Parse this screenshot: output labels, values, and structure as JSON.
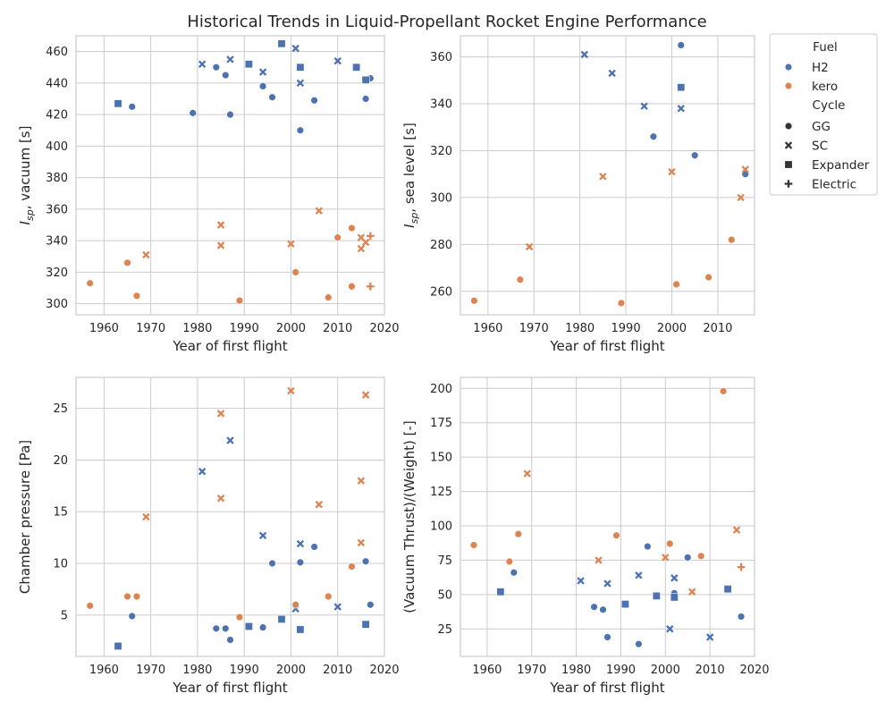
{
  "figure": {
    "title": "Historical Trends in Liquid-Propellant Rocket Engine Performance"
  },
  "legend": {
    "fuel_title": "Fuel",
    "fuel_items": [
      {
        "label": "H2",
        "color": "#4c72b0"
      },
      {
        "label": "kero",
        "color": "#dd8452"
      }
    ],
    "cycle_title": "Cycle",
    "cycle_items": [
      {
        "label": "GG",
        "marker": "circle"
      },
      {
        "label": "SC",
        "marker": "x"
      },
      {
        "label": "Expander",
        "marker": "square"
      },
      {
        "label": "Electric",
        "marker": "plus"
      }
    ]
  },
  "chart_data": [
    {
      "type": "scatter",
      "xlabel": "Year of first flight",
      "ylabel": "I_sp, vacuum [s]",
      "ylabel_main": "I",
      "ylabel_sub": "sp",
      "ylabel_rest": ", vacuum [s]",
      "xlim": [
        1954,
        2020
      ],
      "ylim": [
        293,
        470
      ],
      "xticks": [
        "1960",
        "1970",
        "1980",
        "1990",
        "2000",
        "2010",
        "2020"
      ],
      "yticks": [
        "300",
        "320",
        "340",
        "360",
        "380",
        "400",
        "420",
        "440",
        "460"
      ],
      "grid": true,
      "points": [
        {
          "x": 1966,
          "y": 425,
          "fuel": "H2",
          "cycle": "GG"
        },
        {
          "x": 1979,
          "y": 421,
          "fuel": "H2",
          "cycle": "GG"
        },
        {
          "x": 1984,
          "y": 450,
          "fuel": "H2",
          "cycle": "GG"
        },
        {
          "x": 1986,
          "y": 445,
          "fuel": "H2",
          "cycle": "GG"
        },
        {
          "x": 1987,
          "y": 420,
          "fuel": "H2",
          "cycle": "GG"
        },
        {
          "x": 1994,
          "y": 438,
          "fuel": "H2",
          "cycle": "GG"
        },
        {
          "x": 1996,
          "y": 431,
          "fuel": "H2",
          "cycle": "GG"
        },
        {
          "x": 2002,
          "y": 410,
          "fuel": "H2",
          "cycle": "GG"
        },
        {
          "x": 2005,
          "y": 429,
          "fuel": "H2",
          "cycle": "GG"
        },
        {
          "x": 2016,
          "y": 430,
          "fuel": "H2",
          "cycle": "GG"
        },
        {
          "x": 2017,
          "y": 443,
          "fuel": "H2",
          "cycle": "GG"
        },
        {
          "x": 1981,
          "y": 452,
          "fuel": "H2",
          "cycle": "SC"
        },
        {
          "x": 1987,
          "y": 455,
          "fuel": "H2",
          "cycle": "SC"
        },
        {
          "x": 1994,
          "y": 447,
          "fuel": "H2",
          "cycle": "SC"
        },
        {
          "x": 2001,
          "y": 462,
          "fuel": "H2",
          "cycle": "SC"
        },
        {
          "x": 2002,
          "y": 440,
          "fuel": "H2",
          "cycle": "SC"
        },
        {
          "x": 2010,
          "y": 454,
          "fuel": "H2",
          "cycle": "SC"
        },
        {
          "x": 1963,
          "y": 427,
          "fuel": "H2",
          "cycle": "Expander"
        },
        {
          "x": 1991,
          "y": 452,
          "fuel": "H2",
          "cycle": "Expander"
        },
        {
          "x": 1998,
          "y": 465,
          "fuel": "H2",
          "cycle": "Expander"
        },
        {
          "x": 2002,
          "y": 450,
          "fuel": "H2",
          "cycle": "Expander"
        },
        {
          "x": 2014,
          "y": 450,
          "fuel": "H2",
          "cycle": "Expander"
        },
        {
          "x": 2016,
          "y": 442,
          "fuel": "H2",
          "cycle": "Expander"
        },
        {
          "x": 1957,
          "y": 313,
          "fuel": "kero",
          "cycle": "GG"
        },
        {
          "x": 1965,
          "y": 326,
          "fuel": "kero",
          "cycle": "GG"
        },
        {
          "x": 1967,
          "y": 305,
          "fuel": "kero",
          "cycle": "GG"
        },
        {
          "x": 1989,
          "y": 302,
          "fuel": "kero",
          "cycle": "GG"
        },
        {
          "x": 2001,
          "y": 320,
          "fuel": "kero",
          "cycle": "GG"
        },
        {
          "x": 2008,
          "y": 304,
          "fuel": "kero",
          "cycle": "GG"
        },
        {
          "x": 2010,
          "y": 342,
          "fuel": "kero",
          "cycle": "GG"
        },
        {
          "x": 2013,
          "y": 348,
          "fuel": "kero",
          "cycle": "GG"
        },
        {
          "x": 2013,
          "y": 311,
          "fuel": "kero",
          "cycle": "GG"
        },
        {
          "x": 1969,
          "y": 331,
          "fuel": "kero",
          "cycle": "SC"
        },
        {
          "x": 1985,
          "y": 350,
          "fuel": "kero",
          "cycle": "SC"
        },
        {
          "x": 1985,
          "y": 337,
          "fuel": "kero",
          "cycle": "SC"
        },
        {
          "x": 2000,
          "y": 338,
          "fuel": "kero",
          "cycle": "SC"
        },
        {
          "x": 2006,
          "y": 359,
          "fuel": "kero",
          "cycle": "SC"
        },
        {
          "x": 2015,
          "y": 342,
          "fuel": "kero",
          "cycle": "SC"
        },
        {
          "x": 2015,
          "y": 335,
          "fuel": "kero",
          "cycle": "SC"
        },
        {
          "x": 2016,
          "y": 339,
          "fuel": "kero",
          "cycle": "SC"
        },
        {
          "x": 2017,
          "y": 343,
          "fuel": "kero",
          "cycle": "Electric"
        },
        {
          "x": 2017,
          "y": 311,
          "fuel": "kero",
          "cycle": "Electric"
        }
      ]
    },
    {
      "type": "scatter",
      "xlabel": "Year of first flight",
      "ylabel": "I_sp, sea level [s]",
      "ylabel_main": "I",
      "ylabel_sub": "sp",
      "ylabel_rest": ", sea level [s]",
      "xlim": [
        1954,
        2018
      ],
      "ylim": [
        250,
        369
      ],
      "xticks": [
        "1960",
        "1970",
        "1980",
        "1990",
        "2000",
        "2010"
      ],
      "yticks": [
        "260",
        "280",
        "300",
        "320",
        "340",
        "360"
      ],
      "grid": true,
      "points": [
        {
          "x": 1996,
          "y": 326,
          "fuel": "H2",
          "cycle": "GG"
        },
        {
          "x": 2002,
          "y": 365,
          "fuel": "H2",
          "cycle": "GG"
        },
        {
          "x": 2005,
          "y": 318,
          "fuel": "H2",
          "cycle": "GG"
        },
        {
          "x": 2016,
          "y": 310,
          "fuel": "H2",
          "cycle": "GG"
        },
        {
          "x": 1981,
          "y": 361,
          "fuel": "H2",
          "cycle": "SC"
        },
        {
          "x": 1987,
          "y": 353,
          "fuel": "H2",
          "cycle": "SC"
        },
        {
          "x": 1994,
          "y": 339,
          "fuel": "H2",
          "cycle": "SC"
        },
        {
          "x": 2002,
          "y": 338,
          "fuel": "H2",
          "cycle": "SC"
        },
        {
          "x": 2002,
          "y": 347,
          "fuel": "H2",
          "cycle": "Expander"
        },
        {
          "x": 1957,
          "y": 256,
          "fuel": "kero",
          "cycle": "GG"
        },
        {
          "x": 1967,
          "y": 265,
          "fuel": "kero",
          "cycle": "GG"
        },
        {
          "x": 1989,
          "y": 255,
          "fuel": "kero",
          "cycle": "GG"
        },
        {
          "x": 2001,
          "y": 263,
          "fuel": "kero",
          "cycle": "GG"
        },
        {
          "x": 2008,
          "y": 266,
          "fuel": "kero",
          "cycle": "GG"
        },
        {
          "x": 2013,
          "y": 282,
          "fuel": "kero",
          "cycle": "GG"
        },
        {
          "x": 1969,
          "y": 279,
          "fuel": "kero",
          "cycle": "SC"
        },
        {
          "x": 1985,
          "y": 309,
          "fuel": "kero",
          "cycle": "SC"
        },
        {
          "x": 2000,
          "y": 311,
          "fuel": "kero",
          "cycle": "SC"
        },
        {
          "x": 2015,
          "y": 300,
          "fuel": "kero",
          "cycle": "SC"
        },
        {
          "x": 2016,
          "y": 312,
          "fuel": "kero",
          "cycle": "SC"
        }
      ]
    },
    {
      "type": "scatter",
      "xlabel": "Year of first flight",
      "ylabel": "Chamber pressure [Pa]",
      "xlim": [
        1954,
        2020
      ],
      "ylim": [
        1.0,
        28.0
      ],
      "xticks": [
        "1960",
        "1970",
        "1980",
        "1990",
        "2000",
        "2010",
        "2020"
      ],
      "yticks": [
        "5",
        "10",
        "15",
        "20",
        "25"
      ],
      "grid": true,
      "points": [
        {
          "x": 1966,
          "y": 4.9,
          "fuel": "H2",
          "cycle": "GG"
        },
        {
          "x": 1984,
          "y": 3.7,
          "fuel": "H2",
          "cycle": "GG"
        },
        {
          "x": 1986,
          "y": 3.7,
          "fuel": "H2",
          "cycle": "GG"
        },
        {
          "x": 1987,
          "y": 2.6,
          "fuel": "H2",
          "cycle": "GG"
        },
        {
          "x": 1994,
          "y": 3.8,
          "fuel": "H2",
          "cycle": "GG"
        },
        {
          "x": 1996,
          "y": 10.0,
          "fuel": "H2",
          "cycle": "GG"
        },
        {
          "x": 2002,
          "y": 10.1,
          "fuel": "H2",
          "cycle": "GG"
        },
        {
          "x": 2005,
          "y": 11.6,
          "fuel": "H2",
          "cycle": "GG"
        },
        {
          "x": 2016,
          "y": 10.2,
          "fuel": "H2",
          "cycle": "GG"
        },
        {
          "x": 2017,
          "y": 6.0,
          "fuel": "H2",
          "cycle": "GG"
        },
        {
          "x": 1981,
          "y": 18.9,
          "fuel": "H2",
          "cycle": "SC"
        },
        {
          "x": 1987,
          "y": 21.9,
          "fuel": "H2",
          "cycle": "SC"
        },
        {
          "x": 1994,
          "y": 12.7,
          "fuel": "H2",
          "cycle": "SC"
        },
        {
          "x": 2001,
          "y": 5.6,
          "fuel": "H2",
          "cycle": "SC"
        },
        {
          "x": 2002,
          "y": 11.9,
          "fuel": "H2",
          "cycle": "SC"
        },
        {
          "x": 2010,
          "y": 5.8,
          "fuel": "H2",
          "cycle": "SC"
        },
        {
          "x": 1963,
          "y": 2.0,
          "fuel": "H2",
          "cycle": "Expander"
        },
        {
          "x": 1991,
          "y": 3.9,
          "fuel": "H2",
          "cycle": "Expander"
        },
        {
          "x": 1998,
          "y": 4.6,
          "fuel": "H2",
          "cycle": "Expander"
        },
        {
          "x": 2002,
          "y": 3.6,
          "fuel": "H2",
          "cycle": "Expander"
        },
        {
          "x": 2016,
          "y": 4.1,
          "fuel": "H2",
          "cycle": "Expander"
        },
        {
          "x": 1957,
          "y": 5.9,
          "fuel": "kero",
          "cycle": "GG"
        },
        {
          "x": 1965,
          "y": 6.8,
          "fuel": "kero",
          "cycle": "GG"
        },
        {
          "x": 1967,
          "y": 6.8,
          "fuel": "kero",
          "cycle": "GG"
        },
        {
          "x": 1989,
          "y": 4.8,
          "fuel": "kero",
          "cycle": "GG"
        },
        {
          "x": 2001,
          "y": 6.0,
          "fuel": "kero",
          "cycle": "GG"
        },
        {
          "x": 2008,
          "y": 6.8,
          "fuel": "kero",
          "cycle": "GG"
        },
        {
          "x": 2013,
          "y": 9.7,
          "fuel": "kero",
          "cycle": "GG"
        },
        {
          "x": 1969,
          "y": 14.5,
          "fuel": "kero",
          "cycle": "SC"
        },
        {
          "x": 1985,
          "y": 24.5,
          "fuel": "kero",
          "cycle": "SC"
        },
        {
          "x": 1985,
          "y": 16.3,
          "fuel": "kero",
          "cycle": "SC"
        },
        {
          "x": 2000,
          "y": 26.7,
          "fuel": "kero",
          "cycle": "SC"
        },
        {
          "x": 2006,
          "y": 15.7,
          "fuel": "kero",
          "cycle": "SC"
        },
        {
          "x": 2015,
          "y": 18.0,
          "fuel": "kero",
          "cycle": "SC"
        },
        {
          "x": 2015,
          "y": 12.0,
          "fuel": "kero",
          "cycle": "SC"
        },
        {
          "x": 2016,
          "y": 26.3,
          "fuel": "kero",
          "cycle": "SC"
        }
      ]
    },
    {
      "type": "scatter",
      "xlabel": "Year of first flight",
      "ylabel": "(Vacuum Thrust)/(Weight) [-]",
      "xlim": [
        1954,
        2020
      ],
      "ylim": [
        5,
        208
      ],
      "xticks": [
        "1960",
        "1970",
        "1980",
        "1990",
        "2000",
        "2010",
        "2020"
      ],
      "yticks": [
        "25",
        "50",
        "75",
        "100",
        "125",
        "150",
        "175",
        "200"
      ],
      "grid": true,
      "points": [
        {
          "x": 1966,
          "y": 66,
          "fuel": "H2",
          "cycle": "GG"
        },
        {
          "x": 1984,
          "y": 41,
          "fuel": "H2",
          "cycle": "GG"
        },
        {
          "x": 1986,
          "y": 39,
          "fuel": "H2",
          "cycle": "GG"
        },
        {
          "x": 1987,
          "y": 19,
          "fuel": "H2",
          "cycle": "GG"
        },
        {
          "x": 1994,
          "y": 14,
          "fuel": "H2",
          "cycle": "GG"
        },
        {
          "x": 1996,
          "y": 85,
          "fuel": "H2",
          "cycle": "GG"
        },
        {
          "x": 2002,
          "y": 51,
          "fuel": "H2",
          "cycle": "GG"
        },
        {
          "x": 2005,
          "y": 77,
          "fuel": "H2",
          "cycle": "GG"
        },
        {
          "x": 2017,
          "y": 34,
          "fuel": "H2",
          "cycle": "GG"
        },
        {
          "x": 1981,
          "y": 60,
          "fuel": "H2",
          "cycle": "SC"
        },
        {
          "x": 1987,
          "y": 58,
          "fuel": "H2",
          "cycle": "SC"
        },
        {
          "x": 1994,
          "y": 64,
          "fuel": "H2",
          "cycle": "SC"
        },
        {
          "x": 2001,
          "y": 25,
          "fuel": "H2",
          "cycle": "SC"
        },
        {
          "x": 2002,
          "y": 62,
          "fuel": "H2",
          "cycle": "SC"
        },
        {
          "x": 2010,
          "y": 19,
          "fuel": "H2",
          "cycle": "SC"
        },
        {
          "x": 1963,
          "y": 52,
          "fuel": "H2",
          "cycle": "Expander"
        },
        {
          "x": 1991,
          "y": 43,
          "fuel": "H2",
          "cycle": "Expander"
        },
        {
          "x": 1998,
          "y": 49,
          "fuel": "H2",
          "cycle": "Expander"
        },
        {
          "x": 2002,
          "y": 48,
          "fuel": "H2",
          "cycle": "Expander"
        },
        {
          "x": 2014,
          "y": 54,
          "fuel": "H2",
          "cycle": "Expander"
        },
        {
          "x": 1957,
          "y": 86,
          "fuel": "kero",
          "cycle": "GG"
        },
        {
          "x": 1965,
          "y": 74,
          "fuel": "kero",
          "cycle": "GG"
        },
        {
          "x": 1967,
          "y": 94,
          "fuel": "kero",
          "cycle": "GG"
        },
        {
          "x": 1989,
          "y": 93,
          "fuel": "kero",
          "cycle": "GG"
        },
        {
          "x": 2001,
          "y": 87,
          "fuel": "kero",
          "cycle": "GG"
        },
        {
          "x": 2008,
          "y": 78,
          "fuel": "kero",
          "cycle": "GG"
        },
        {
          "x": 2013,
          "y": 198,
          "fuel": "kero",
          "cycle": "GG"
        },
        {
          "x": 1969,
          "y": 138,
          "fuel": "kero",
          "cycle": "SC"
        },
        {
          "x": 1985,
          "y": 75,
          "fuel": "kero",
          "cycle": "SC"
        },
        {
          "x": 2000,
          "y": 77,
          "fuel": "kero",
          "cycle": "SC"
        },
        {
          "x": 2006,
          "y": 52,
          "fuel": "kero",
          "cycle": "SC"
        },
        {
          "x": 2016,
          "y": 97,
          "fuel": "kero",
          "cycle": "SC"
        },
        {
          "x": 2017,
          "y": 70,
          "fuel": "kero",
          "cycle": "Electric"
        }
      ]
    }
  ]
}
